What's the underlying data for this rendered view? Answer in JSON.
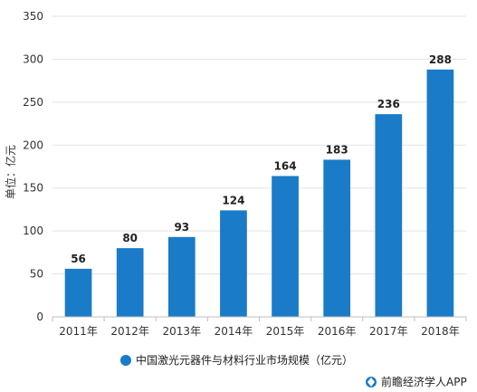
{
  "chart_data": {
    "type": "bar",
    "categories": [
      "2011年",
      "2012年",
      "2013年",
      "2014年",
      "2015年",
      "2016年",
      "2017年",
      "2018年"
    ],
    "series": [
      {
        "name": "中国激光元器件与材料行业市场规模（亿元）",
        "values": [
          56,
          80,
          93,
          124,
          164,
          183,
          236,
          288
        ]
      }
    ],
    "ylabel": "单位：亿元",
    "ylim": [
      0,
      350
    ],
    "yticks": [
      0,
      50,
      100,
      150,
      200,
      250,
      300,
      350
    ],
    "grid": true,
    "legend_position": "bottom",
    "bar_color": "#1a7bc8"
  },
  "source": "前瞻经济学人APP"
}
